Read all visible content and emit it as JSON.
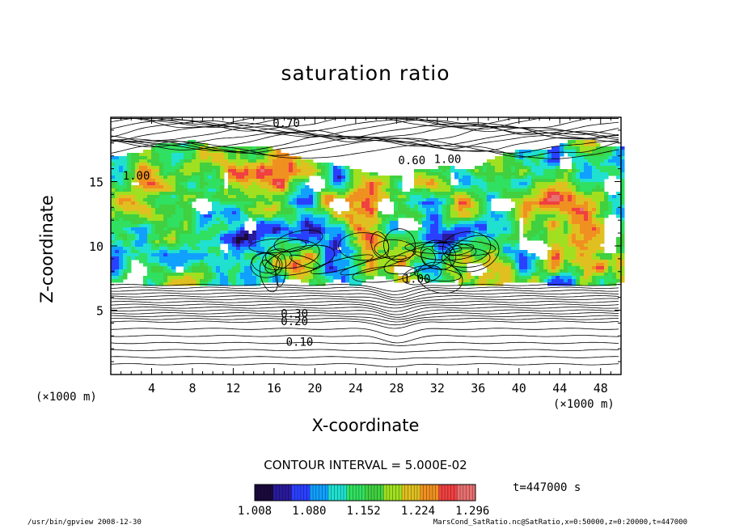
{
  "chart_data": {
    "type": "heatmap",
    "title": "saturation ratio",
    "xlabel": "X-coordinate",
    "ylabel": "Z-coordinate",
    "x_unit": "(×1000 m)",
    "y_unit": "(×1000 m)",
    "xlim": [
      0,
      50
    ],
    "ylim": [
      0,
      20
    ],
    "x_ticks": [
      4,
      8,
      12,
      16,
      20,
      24,
      28,
      32,
      36,
      40,
      44,
      48
    ],
    "y_ticks": [
      5,
      10,
      15
    ],
    "contour_interval_text": "CONTOUR INTERVAL = 5.000E-02",
    "contour_labels": [
      {
        "text": "0.10",
        "x": 18.5,
        "z": 2.5
      },
      {
        "text": "0.20",
        "x": 18.0,
        "z": 4.1
      },
      {
        "text": "0.30",
        "x": 18.0,
        "z": 4.7
      },
      {
        "text": "0.70",
        "x": 17.2,
        "z": 19.5
      },
      {
        "text": "0.60",
        "x": 29.5,
        "z": 16.6
      },
      {
        "text": "1.00",
        "x": 2.5,
        "z": 15.4
      },
      {
        "text": "1.00",
        "x": 33.0,
        "z": 16.7
      },
      {
        "text": "1.00",
        "x": 30.0,
        "z": 7.4
      }
    ],
    "colorbar": {
      "ticks": [
        "1.008",
        "1.080",
        "1.152",
        "1.224",
        "1.296"
      ],
      "min": 1.008,
      "max": 1.3,
      "colors": [
        "#1a0a3c",
        "#2a1a9c",
        "#2a40ff",
        "#10a0ff",
        "#20e0d0",
        "#30e060",
        "#40d040",
        "#a0e020",
        "#e0c020",
        "#f09020",
        "#f04040",
        "#e87070"
      ]
    },
    "time_label": "t=447000 s",
    "fill_threshold": 1.0,
    "saturated_layer_z": [
      7,
      17
    ]
  },
  "footer": {
    "left": "/usr/bin/gpview   2008-12-30",
    "right": "MarsCond_SatRatio.nc@SatRatio,x=0:50000,z=0:20000,t=447000"
  }
}
